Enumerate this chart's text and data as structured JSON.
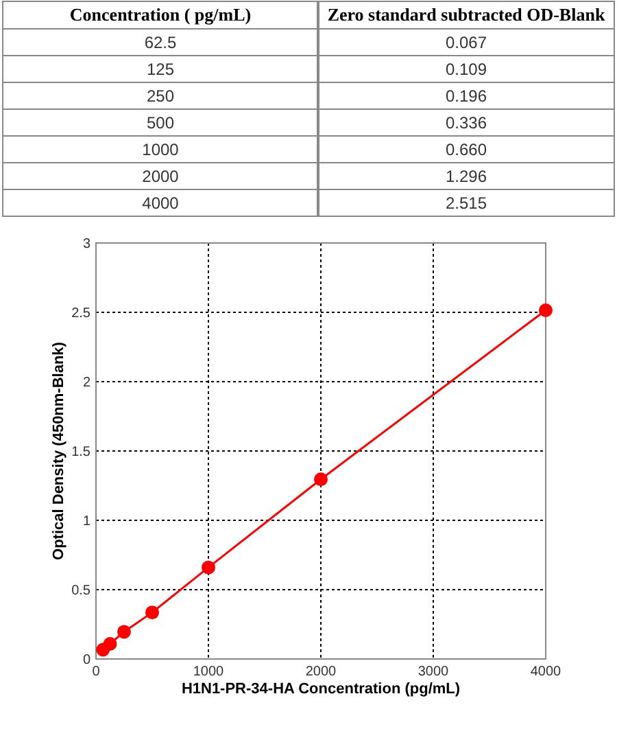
{
  "chart_data": [
    {
      "type": "other",
      "categories": [
        "62.5",
        "125",
        "250",
        "500",
        "1000",
        "2000",
        "4000"
      ],
      "value_labels": [
        "0.067",
        "0.109",
        "0.196",
        "0.336",
        "0.660",
        "1.296",
        "2.515"
      ],
      "xlabel": "Concentration ( pg/mL)",
      "ylabel": "Zero standard subtracted OD-Blank"
    },
    {
      "type": "line",
      "xlabel": "H1N1-PR-34-HA Concentration (pg/mL)",
      "ylabel": "Optical Density (450nm-Blank)",
      "x": [
        62.5,
        125,
        250,
        500,
        1000,
        2000,
        4000
      ],
      "values": [
        0.067,
        0.109,
        0.196,
        0.336,
        0.66,
        1.296,
        2.515
      ],
      "color": "#ff0000",
      "marker": "circle",
      "line_style": "solid",
      "grid": true,
      "xlim": [
        0,
        4000
      ],
      "xticks": [
        0,
        1000,
        2000,
        3000,
        4000
      ],
      "ylim": [
        0,
        3
      ],
      "yticks": [
        0,
        0.5,
        1,
        1.5,
        2,
        2.5,
        3
      ]
    }
  ]
}
